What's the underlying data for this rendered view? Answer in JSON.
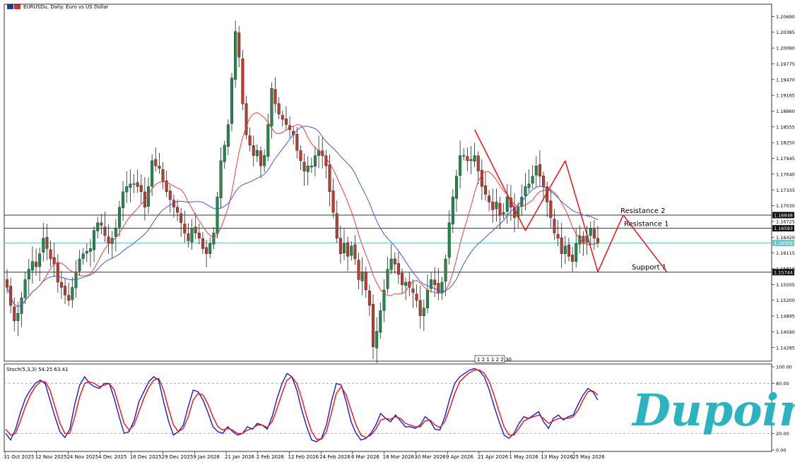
{
  "window": {
    "title": "EURUSDu, Daily:  Euro vs US Dollar"
  },
  "time_badge": "1 2 1 1 2 2 30",
  "brand": {
    "name": "Dupoin"
  },
  "colors": {
    "bull": "#1f8a4c",
    "bear": "#c0392b",
    "ma_fast": "#e8413c",
    "ma_slow": "#3b5bdb",
    "trend": "#e8141c",
    "stoch_main": "#1a1ad0",
    "stoch_signal": "#e8141c",
    "current_price": "#6cc7c7",
    "logo": "#2bb3c0"
  },
  "chart_data": [
    {
      "type": "candlestick",
      "symbol": "EURUSDu",
      "timeframe": "Daily",
      "title": "EURUSDu, Daily:  Euro vs US Dollar",
      "ylim": [
        1.1405,
        1.209
      ],
      "ytick_labels": [
        "1.20690",
        "1.20385",
        "1.20080",
        "1.19775",
        "1.19470",
        "1.19165",
        "1.18860",
        "1.18555",
        "1.18250",
        "1.17945",
        "1.17640",
        "1.17335",
        "1.17030",
        "1.16725",
        "1.16420",
        "1.16115",
        "1.15810",
        "1.15505",
        "1.15200",
        "1.14895",
        "1.14590",
        "1.14285"
      ],
      "xtick_labels": [
        "31 Oct 2025",
        "12 Nov 2025",
        "24 Nov 2025",
        "4 Dec 2025",
        "16 Dec 2025",
        "29 Dec 2025",
        "9 Jan 2026",
        "21 Jan 2026",
        "2 Feb 2026",
        "12 Feb 2026",
        "24 Feb 2026",
        "6 Mar 2026",
        "18 Mar 2026",
        "30 Mar 2026",
        "9 Apr 2026",
        "21 Apr 2026",
        "1 May 2026",
        "13 May 2026",
        "25 May 2026"
      ],
      "levels": [
        {
          "name": "Resistance 2",
          "price": 1.16848,
          "tag": "1.16848"
        },
        {
          "name": "Resistance 1",
          "price": 1.16593,
          "tag": "1.16593"
        },
        {
          "name": "Support 1",
          "price": 1.15744,
          "tag": "1.15744"
        }
      ],
      "current_price": {
        "price": 1.16309,
        "tag": "1.16309"
      },
      "close": [
        1.1545,
        1.151,
        1.148,
        1.1495,
        1.1525,
        1.156,
        1.158,
        1.1595,
        1.1585,
        1.161,
        1.164,
        1.162,
        1.16,
        1.159,
        1.1555,
        1.1545,
        1.153,
        1.152,
        1.1545,
        1.1575,
        1.16,
        1.161,
        1.1615,
        1.162,
        1.1655,
        1.167,
        1.1665,
        1.1645,
        1.163,
        1.164,
        1.166,
        1.17,
        1.173,
        1.174,
        1.1745,
        1.1745,
        1.174,
        1.173,
        1.17,
        1.174,
        1.179,
        1.178,
        1.1775,
        1.175,
        1.173,
        1.1715,
        1.17,
        1.169,
        1.167,
        1.165,
        1.1635,
        1.166,
        1.165,
        1.164,
        1.162,
        1.161,
        1.163,
        1.165,
        1.172,
        1.179,
        1.182,
        1.186,
        1.195,
        1.204,
        1.199,
        1.19,
        1.184,
        1.182,
        1.18,
        1.181,
        1.178,
        1.18,
        1.186,
        1.193,
        1.19,
        1.188,
        1.187,
        1.186,
        1.185,
        1.184,
        1.181,
        1.179,
        1.177,
        1.178,
        1.178,
        1.18,
        1.181,
        1.18,
        1.178,
        1.173,
        1.169,
        1.164,
        1.161,
        1.163,
        1.1605,
        1.1625,
        1.16,
        1.156,
        1.1575,
        1.154,
        1.151,
        1.143,
        1.146,
        1.15,
        1.154,
        1.158,
        1.16,
        1.159,
        1.157,
        1.155,
        1.1555,
        1.1545,
        1.1535,
        1.152,
        1.149,
        1.1505,
        1.154,
        1.156,
        1.155,
        1.1535,
        1.1555,
        1.16,
        1.167,
        1.172,
        1.176,
        1.18,
        1.18,
        1.179,
        1.179,
        1.18,
        1.177,
        1.174,
        1.1725,
        1.171,
        1.1695,
        1.171,
        1.1685,
        1.169,
        1.172,
        1.17,
        1.168,
        1.17,
        1.172,
        1.174,
        1.1745,
        1.176,
        1.178,
        1.176,
        1.174,
        1.171,
        1.168,
        1.165,
        1.164,
        1.161,
        1.1625,
        1.1605,
        1.1595,
        1.163,
        1.1645,
        1.163,
        1.1645,
        1.166,
        1.164,
        1.1631
      ]
    },
    {
      "type": "line",
      "title": "Stoch(5,3,3) 54.25 63.41",
      "ylim": [
        0,
        100
      ],
      "ytick_labels": [
        "100.00",
        "80.00",
        "20.00",
        "0.00"
      ],
      "series": [
        {
          "key": "main",
          "values": [
            20,
            12,
            25,
            45,
            62,
            72,
            80,
            84,
            80,
            60,
            40,
            22,
            15,
            25,
            55,
            78,
            88,
            80,
            76,
            74,
            80,
            80,
            62,
            40,
            20,
            22,
            35,
            58,
            70,
            82,
            88,
            84,
            58,
            35,
            18,
            22,
            30,
            52,
            72,
            70,
            60,
            45,
            28,
            22,
            20,
            28,
            22,
            18,
            20,
            28,
            25,
            32,
            30,
            25,
            40,
            62,
            80,
            92,
            88,
            72,
            48,
            28,
            12,
            10,
            14,
            30,
            58,
            80,
            78,
            58,
            34,
            20,
            12,
            14,
            20,
            30,
            44,
            38,
            34,
            42,
            35,
            28,
            28,
            26,
            30,
            40,
            35,
            25,
            24,
            40,
            62,
            80,
            88,
            92,
            96,
            98,
            95,
            88,
            72,
            52,
            34,
            18,
            14,
            20,
            32,
            40,
            38,
            42,
            46,
            34,
            26,
            38,
            42,
            36,
            40,
            42,
            55,
            66,
            74,
            70,
            60
          ]
        },
        {
          "key": "signal",
          "values": [
            25,
            18,
            20,
            35,
            52,
            66,
            76,
            82,
            82,
            72,
            52,
            32,
            20,
            20,
            40,
            64,
            80,
            82,
            80,
            76,
            78,
            80,
            72,
            52,
            32,
            24,
            30,
            46,
            62,
            75,
            84,
            86,
            72,
            50,
            30,
            22,
            26,
            40,
            60,
            68,
            66,
            55,
            40,
            28,
            24,
            26,
            24,
            20,
            20,
            24,
            26,
            30,
            30,
            27,
            34,
            50,
            68,
            84,
            88,
            80,
            62,
            40,
            22,
            13,
            13,
            22,
            44,
            68,
            76,
            66,
            48,
            30,
            18,
            15,
            18,
            25,
            36,
            38,
            37,
            40,
            38,
            32,
            30,
            28,
            28,
            35,
            36,
            30,
            27,
            34,
            50,
            68,
            82,
            88,
            93,
            96,
            96,
            92,
            82,
            65,
            46,
            28,
            18,
            18,
            26,
            35,
            38,
            40,
            42,
            38,
            32,
            35,
            38,
            38,
            38,
            40,
            48,
            60,
            70,
            71,
            66
          ]
        }
      ],
      "last_values": {
        "main": 54.25,
        "signal": 63.41
      }
    }
  ],
  "annotations": {
    "trendline_note": "red zig-zag pattern lines drawn in April–May 2026"
  }
}
